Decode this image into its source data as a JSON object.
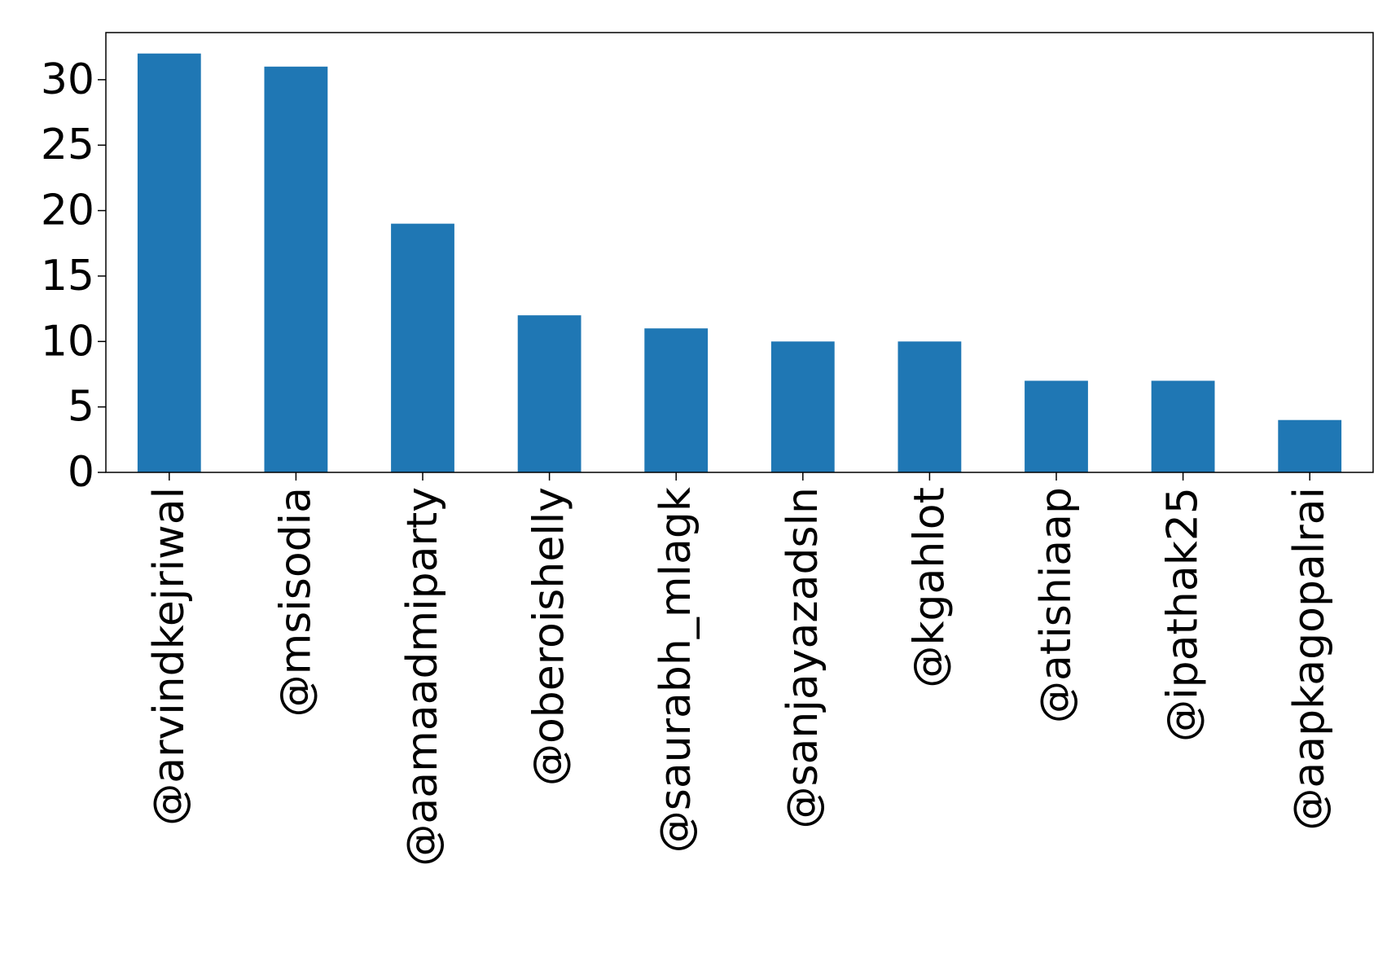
{
  "chart_data": {
    "type": "bar",
    "title": "",
    "xlabel": "",
    "ylabel": "",
    "categories": [
      "@arvindkejriwal",
      "@msisodia",
      "@aamaadmiparty",
      "@oberoishelly",
      "@saurabh_mlagk",
      "@sanjayazadsln",
      "@kgahlot",
      "@atishiaap",
      "@ipathak25",
      "@aapkagopalrai"
    ],
    "values": [
      32,
      31,
      19,
      12,
      11,
      10,
      10,
      7,
      7,
      4
    ],
    "ylim": [
      0,
      33.6
    ],
    "yticks": [
      "0",
      "5",
      "10",
      "15",
      "20",
      "25",
      "30"
    ],
    "grid": false,
    "legend": "none",
    "colors": {
      "bar": "#1f77b4",
      "axis": "#000000",
      "background": "#ffffff"
    }
  }
}
